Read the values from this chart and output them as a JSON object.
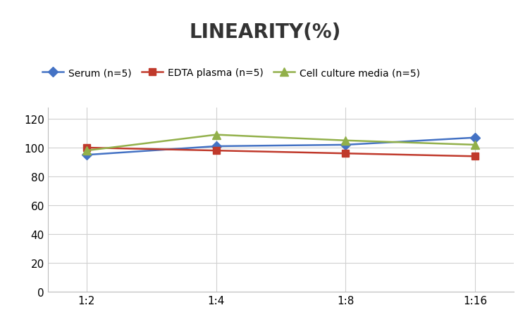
{
  "title": "LINEARITY(%)",
  "x_labels": [
    "1:2",
    "1:4",
    "1:8",
    "1:16"
  ],
  "x_positions": [
    0,
    1,
    2,
    3
  ],
  "series": [
    {
      "label": "Serum (n=5)",
      "values": [
        95,
        101,
        102,
        107
      ],
      "color": "#4472C4",
      "marker": "D",
      "markersize": 7,
      "linewidth": 1.8
    },
    {
      "label": "EDTA plasma (n=5)",
      "values": [
        100,
        98,
        96,
        94
      ],
      "color": "#C0392B",
      "marker": "s",
      "markersize": 7,
      "linewidth": 1.8
    },
    {
      "label": "Cell culture media (n=5)",
      "values": [
        98,
        109,
        105,
        102
      ],
      "color": "#92B04A",
      "marker": "^",
      "markersize": 9,
      "linewidth": 1.8
    }
  ],
  "ylim": [
    0,
    128
  ],
  "yticks": [
    0,
    20,
    40,
    60,
    80,
    100,
    120
  ],
  "title_fontsize": 20,
  "title_fontweight": "bold",
  "legend_fontsize": 10,
  "tick_fontsize": 11,
  "background_color": "#ffffff",
  "grid_color": "#d0d0d0"
}
